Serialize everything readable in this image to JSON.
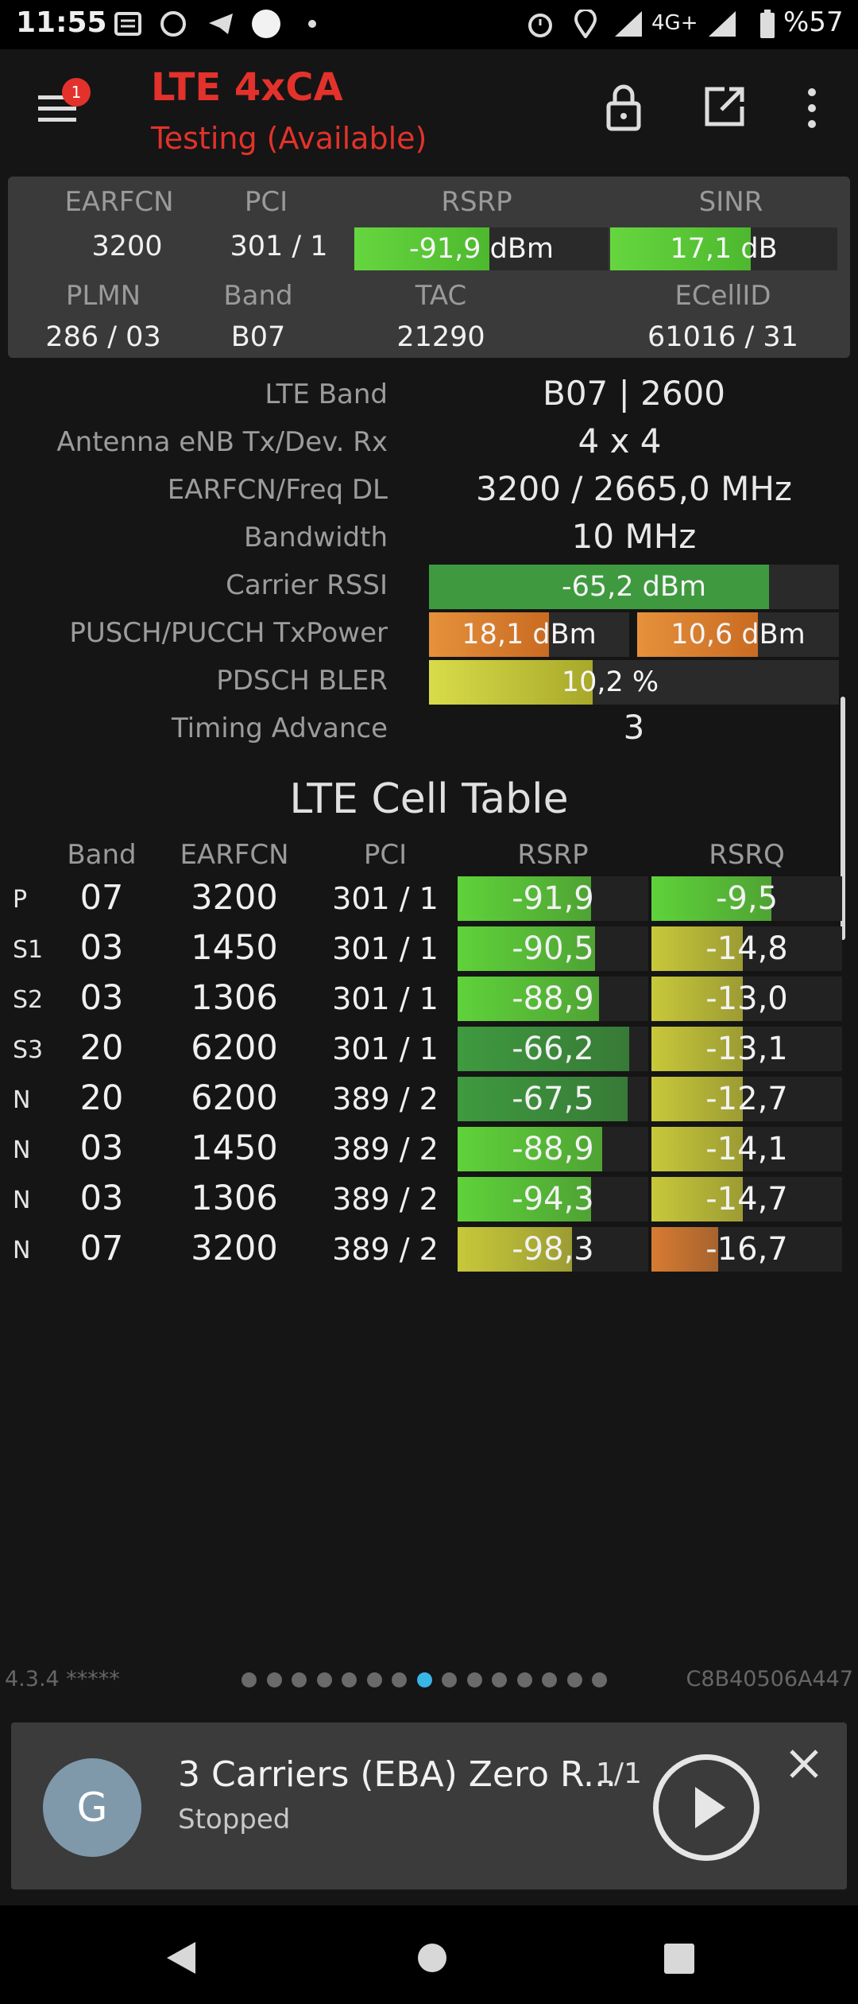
{
  "status_bar": {
    "time": "11:55",
    "network": "4G+",
    "battery": "%57"
  },
  "app": {
    "title": "LTE 4xCA",
    "subtitle": "Testing (Available)",
    "menu_badge": "1"
  },
  "summary": {
    "headers": {
      "earfcn": "EARFCN",
      "pci": "PCI",
      "rsrp": "RSRP",
      "sinr": "SINR",
      "plmn": "PLMN",
      "band": "Band",
      "tac": "TAC",
      "ecellid": "ECellID"
    },
    "earfcn": "3200",
    "pci": "301 / 1",
    "rsrp": "-91,9 dBm",
    "rsrp_level": 0.53,
    "sinr": "17,1 dB",
    "sinr_level": 0.62,
    "plmn": "286 / 03",
    "band": "B07",
    "tac": "21290",
    "ecellid": "61016 / 31"
  },
  "details": {
    "lte_band_label": "LTE Band",
    "lte_band": "B07 | 2600",
    "antenna_label": "Antenna eNB Tx/Dev. Rx",
    "antenna": "4 x 4",
    "earfcn_label": "EARFCN/Freq DL",
    "earfcn_freq": "3200 / 2665,0 MHz",
    "bandwidth_label": "Bandwidth",
    "bandwidth": "10 MHz",
    "rssi_label": "Carrier RSSI",
    "rssi": "-65,2 dBm",
    "rssi_level": 0.83,
    "txpower_label": "PUSCH/PUCCH TxPower",
    "pusch": "18,1 dBm",
    "pusch_level": 0.6,
    "pucch": "10,6 dBm",
    "pucch_level": 0.6,
    "bler_label": "PDSCH BLER",
    "bler": "10,2 %",
    "bler_level": 0.4,
    "ta_label": "Timing Advance",
    "ta": "3"
  },
  "cell_table": {
    "title": "LTE Cell Table",
    "headers": {
      "band": "Band",
      "earfcn": "EARFCN",
      "pci": "PCI",
      "rsrp": "RSRP",
      "rsrq": "RSRQ"
    },
    "rows": [
      {
        "type": "P",
        "band": "07",
        "earfcn": "3200",
        "pci": "301 / 1",
        "rsrp": "-91,9",
        "rsrp_level": 0.7,
        "rsrp_color": "#5fd23a",
        "rsrq": "-9,5",
        "rsrq_level": 0.63,
        "rsrq_color": "#5fd23a"
      },
      {
        "type": "S1",
        "band": "03",
        "earfcn": "1450",
        "pci": "301 / 1",
        "rsrp": "-90,5",
        "rsrp_level": 0.72,
        "rsrp_color": "#5fd23a",
        "rsrq": "-14,8",
        "rsrq_level": 0.48,
        "rsrq_color": "#c8c83a"
      },
      {
        "type": "S2",
        "band": "03",
        "earfcn": "1306",
        "pci": "301 / 1",
        "rsrp": "-88,9",
        "rsrp_level": 0.74,
        "rsrp_color": "#5fd23a",
        "rsrq": "-13,0",
        "rsrq_level": 0.48,
        "rsrq_color": "#c8c83a"
      },
      {
        "type": "S3",
        "band": "20",
        "earfcn": "6200",
        "pci": "301 / 1",
        "rsrp": "-66,2",
        "rsrp_level": 0.9,
        "rsrp_color": "#3f9a3f",
        "rsrq": "-13,1",
        "rsrq_level": 0.48,
        "rsrq_color": "#c8c83a"
      },
      {
        "type": "N",
        "band": "20",
        "earfcn": "6200",
        "pci": "389 / 2",
        "rsrp": "-67,5",
        "rsrp_level": 0.89,
        "rsrp_color": "#3f9a3f",
        "rsrq": "-12,7",
        "rsrq_level": 0.48,
        "rsrq_color": "#c8c83a"
      },
      {
        "type": "N",
        "band": "03",
        "earfcn": "1450",
        "pci": "389 / 2",
        "rsrp": "-88,9",
        "rsrp_level": 0.76,
        "rsrp_color": "#5fd23a",
        "rsrq": "-14,1",
        "rsrq_level": 0.48,
        "rsrq_color": "#c8c83a"
      },
      {
        "type": "N",
        "band": "03",
        "earfcn": "1306",
        "pci": "389 / 2",
        "rsrp": "-94,3",
        "rsrp_level": 0.7,
        "rsrp_color": "#5fd23a",
        "rsrq": "-14,7",
        "rsrq_level": 0.48,
        "rsrq_color": "#c8c83a"
      },
      {
        "type": "N",
        "band": "07",
        "earfcn": "3200",
        "pci": "389 / 2",
        "rsrp": "-98,3",
        "rsrp_level": 0.6,
        "rsrp_color": "#c8c83a",
        "rsrq": "-16,7",
        "rsrq_level": 0.35,
        "rsrq_color": "#d77b32"
      }
    ]
  },
  "footer": {
    "version": "4.3.4 *****",
    "cell_hex": "C8B40506A447",
    "page_count": 15,
    "active_page": 8
  },
  "player": {
    "avatar_letter": "G",
    "title": "3 Carriers (EBA) Zero R...",
    "count": "1/1",
    "status": "Stopped"
  }
}
